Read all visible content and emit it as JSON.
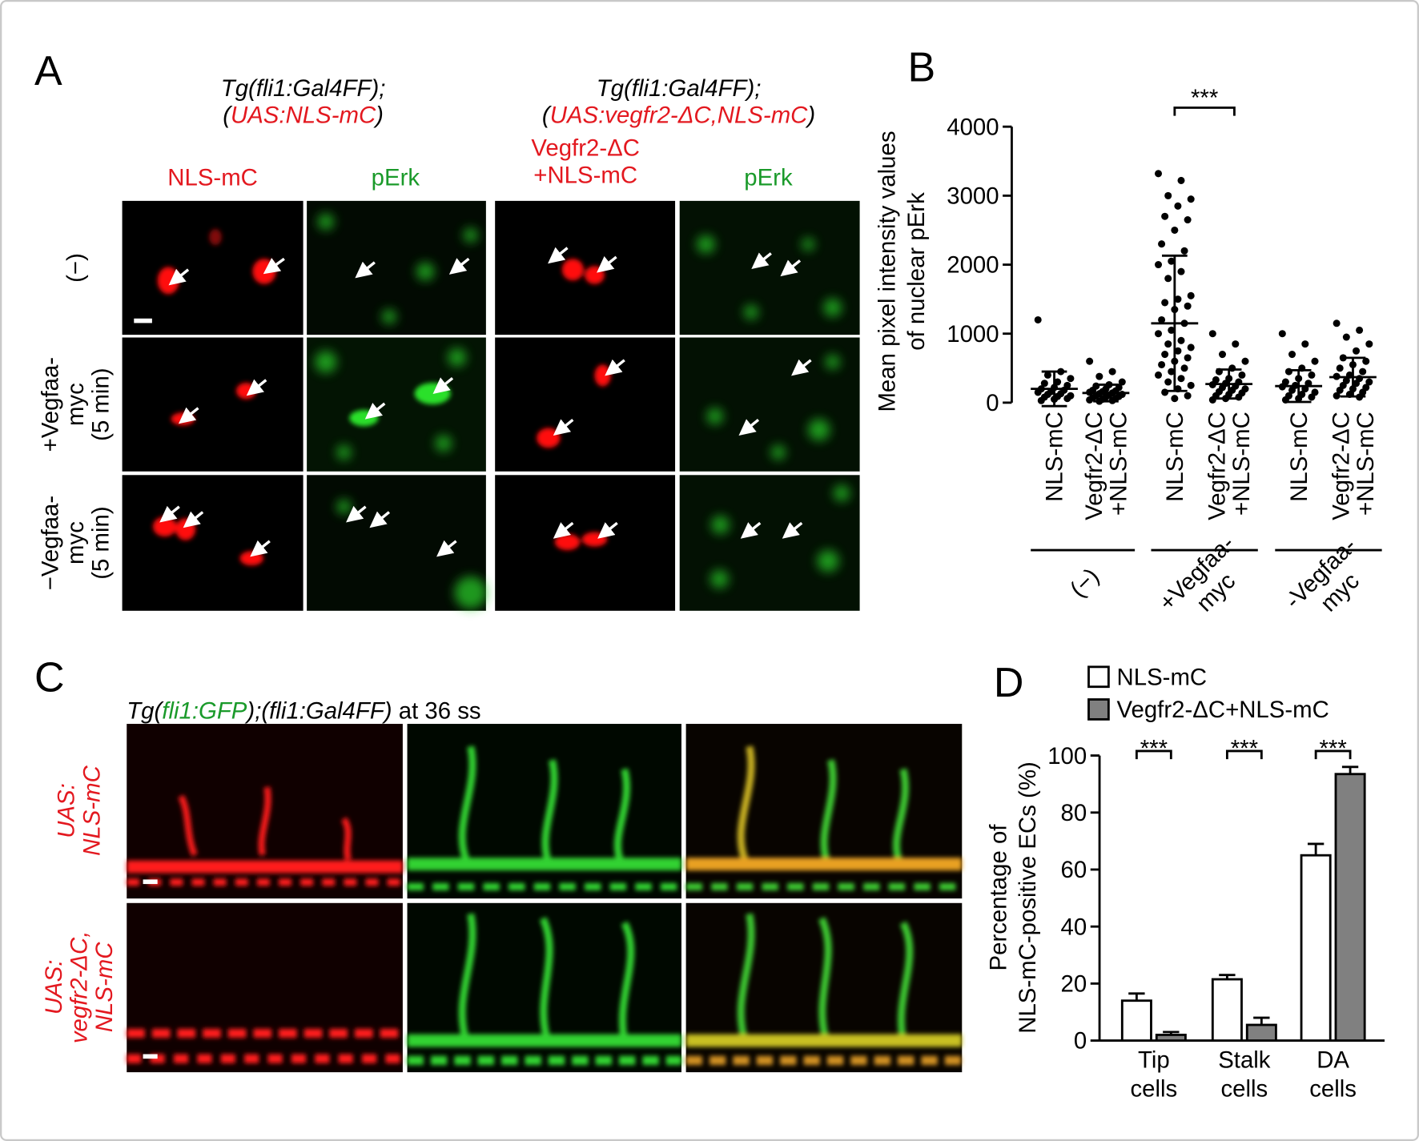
{
  "panel_a": {
    "label": "A",
    "group_titles": [
      {
        "line1": "Tg(fli1:Gal4FF);",
        "line2": [
          "(",
          "UAS:NLS-mC",
          ")"
        ]
      },
      {
        "line1": "Tg(fli1:Gal4FF);",
        "line2": [
          "(",
          "UAS:vegfr2-ΔC,NLS-mC",
          ")"
        ]
      }
    ],
    "column_labels": [
      [
        "NLS-mC"
      ],
      [
        "pErk"
      ],
      [
        "Vegfr2-ΔC",
        "+NLS-mC"
      ],
      [
        "pErk"
      ]
    ],
    "row_labels": [
      [
        "(−)"
      ],
      [
        "+Vegfaa-",
        "myc",
        "(5 min)"
      ],
      [
        "−Vegfaa-",
        "myc",
        "(5 min)"
      ]
    ]
  },
  "panel_c": {
    "label": "C",
    "title": [
      "Tg(",
      "fli1:GFP",
      ");(fli1:Gal4FF)",
      " at 36 ss"
    ],
    "row_labels": [
      [
        "UAS:",
        "NLS-mC"
      ],
      [
        "UAS:",
        "vegfr2-ΔC,",
        "NLS-mC"
      ]
    ]
  },
  "chart_data": [
    {
      "type": "scatter",
      "label": "B",
      "y_label": [
        "Mean pixel intensity values",
        "of nuclear pErk"
      ],
      "categories": [
        [
          "NLS-mC"
        ],
        [
          "Vegfr2-ΔC",
          "+NLS-mC"
        ],
        [
          "NLS-mC"
        ],
        [
          "Vegfr2-ΔC",
          "+NLS-mC"
        ],
        [
          "NLS-mC"
        ],
        [
          "Vegfr2-ΔC",
          "+NLS-mC"
        ]
      ],
      "groups": [
        [
          "(−)"
        ],
        [
          "+Vegfaa-",
          "myc"
        ],
        [
          "-Vegfaa-",
          "myc"
        ]
      ],
      "points": [
        [
          1200,
          450,
          400,
          350,
          300,
          280,
          250,
          220,
          200,
          180,
          160,
          150,
          130,
          120,
          100,
          90,
          80,
          60,
          50,
          30
        ],
        [
          600,
          450,
          380,
          300,
          260,
          240,
          220,
          200,
          180,
          170,
          160,
          150,
          140,
          130,
          120,
          110,
          100,
          90,
          80,
          70,
          60,
          50,
          40,
          30,
          20
        ],
        [
          3320,
          3220,
          3000,
          2950,
          2850,
          2700,
          2650,
          2500,
          2300,
          2200,
          2050,
          2000,
          1900,
          1800,
          1550,
          1500,
          1450,
          1400,
          1350,
          1200,
          1150,
          1050,
          1000,
          900,
          850,
          800,
          750,
          700,
          650,
          600,
          550,
          500,
          450,
          400,
          350,
          300,
          250,
          200,
          150,
          100,
          60
        ],
        [
          1000,
          850,
          700,
          600,
          500,
          450,
          400,
          350,
          330,
          300,
          280,
          260,
          240,
          220,
          200,
          180,
          160,
          140,
          120,
          100,
          80,
          60,
          40
        ],
        [
          1000,
          850,
          700,
          600,
          500,
          450,
          400,
          350,
          300,
          280,
          250,
          230,
          200,
          180,
          150,
          120,
          100,
          80,
          60,
          40
        ],
        [
          1150,
          1050,
          950,
          850,
          750,
          650,
          600,
          550,
          500,
          450,
          400,
          380,
          350,
          320,
          300,
          280,
          250,
          220,
          200,
          180,
          150,
          120,
          100,
          80
        ]
      ],
      "means": [
        200,
        140,
        1150,
        270,
        240,
        370
      ],
      "sd": [
        250,
        120,
        980,
        210,
        230,
        280
      ],
      "significance": "***",
      "color": "#000000",
      "ylim": [
        0,
        4000
      ],
      "yticks": [
        0,
        1000,
        2000,
        3000,
        4000
      ]
    },
    {
      "type": "bar",
      "label": "D",
      "y_label": [
        "Percentage of",
        "NLS-mC-positive ECs (%)"
      ],
      "categories": [
        [
          "Tip",
          "cells"
        ],
        [
          "Stalk",
          "cells"
        ],
        [
          "DA",
          "cells"
        ]
      ],
      "series": [
        {
          "name": "NLS-mC",
          "color": "#ffffff",
          "values": [
            14,
            21.5,
            65
          ],
          "errors": [
            2.5,
            1.5,
            4
          ]
        },
        {
          "name": "Vegfr2-ΔC+NLS-mC",
          "color": "#808080",
          "values": [
            2,
            5.5,
            93.5
          ],
          "errors": [
            1,
            2.5,
            2.5
          ]
        }
      ],
      "significance": [
        "***",
        "***",
        "***"
      ],
      "ylim": [
        0,
        100
      ],
      "yticks": [
        0,
        20,
        40,
        60,
        80,
        100
      ]
    }
  ]
}
